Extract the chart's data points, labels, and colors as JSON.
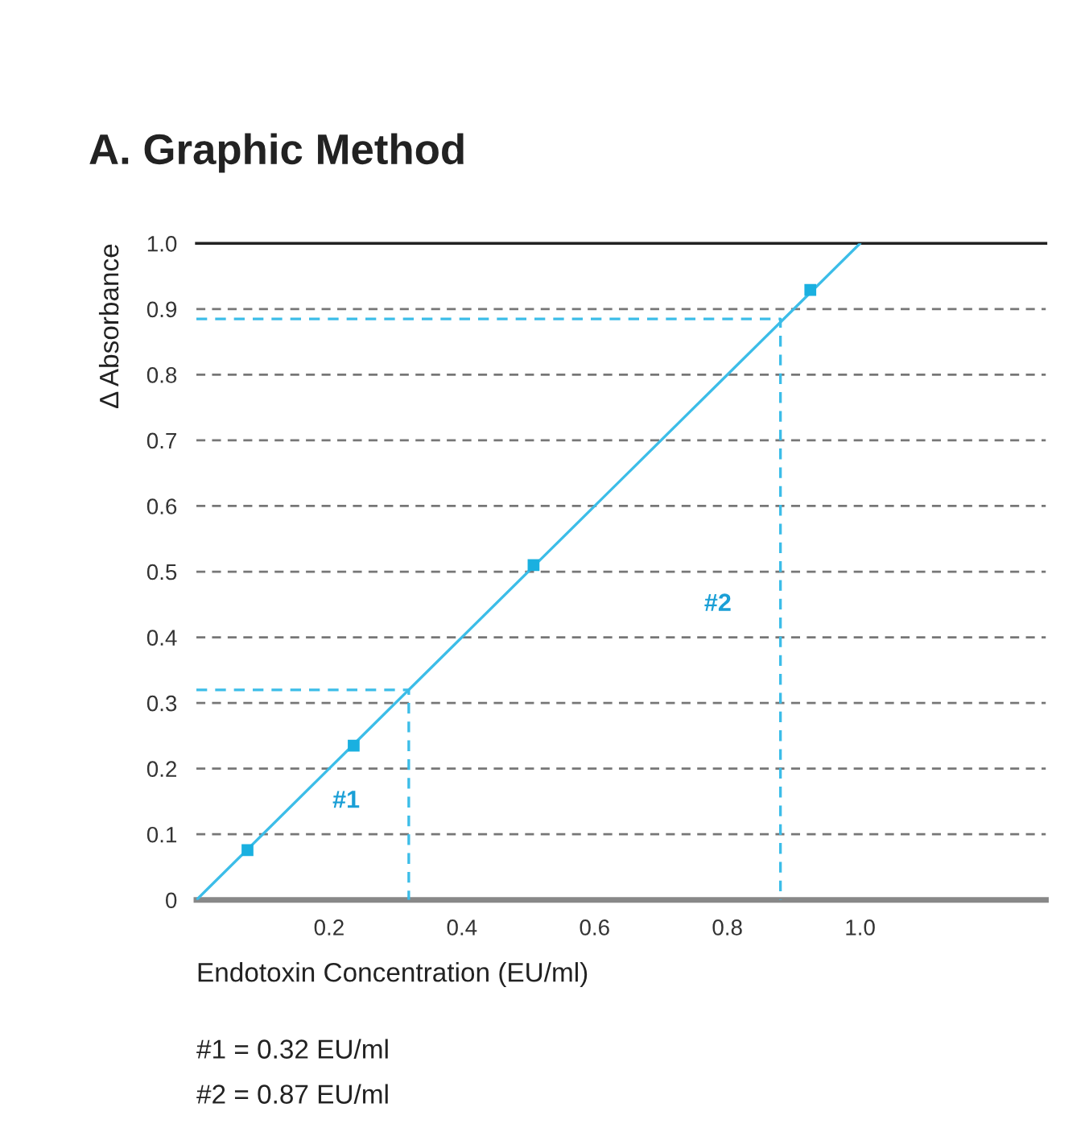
{
  "chart_data": {
    "type": "scatter",
    "title": "A. Graphic Method",
    "xlabel": "Endotoxin Concentration (EU/ml)",
    "ylabel": "Δ Absorbance",
    "xlim": [
      0,
      1.28
    ],
    "ylim": [
      0,
      1.0
    ],
    "xticks": [
      0.2,
      0.4,
      0.6,
      0.8,
      {
        "value": 1.0,
        "label": "1.0"
      }
    ],
    "yticks": [
      0,
      0.1,
      0.2,
      0.3,
      0.4,
      0.5,
      0.6,
      0.7,
      0.8,
      0.9,
      {
        "value": 1.0,
        "label": "1.0"
      }
    ],
    "grid": "y",
    "marker": "square",
    "series": [
      {
        "color": "#1ab0e0",
        "x": [
          0.077,
          0.237,
          0.508,
          0.925
        ],
        "values": [
          0.076,
          0.235,
          0.51,
          0.929
        ]
      },
      {
        "type": "line",
        "color": "#3cbde8",
        "marker": "none",
        "line_style": "solid",
        "x": [
          0,
          1.0
        ],
        "values": [
          0,
          1.0
        ]
      },
      {
        "type": "line",
        "color": "#3cbde8",
        "marker": "none",
        "line_style": "dashed",
        "x": [
          0,
          0.32,
          0.32
        ],
        "values": [
          0.32,
          0.32,
          0
        ]
      },
      {
        "type": "line",
        "color": "#3cbde8",
        "marker": "none",
        "line_style": "dashed",
        "x": [
          0,
          0.88,
          0.88
        ],
        "values": [
          0.885,
          0.885,
          0
        ]
      }
    ],
    "annotations": [
      {
        "text": "#1",
        "x": 0.32,
        "y": 0.15
      },
      {
        "text": "#2",
        "x": 0.88,
        "y": 0.45
      },
      "#1 = 0.32 EU/ml",
      "#2 = 0.87 EU/ml"
    ]
  }
}
